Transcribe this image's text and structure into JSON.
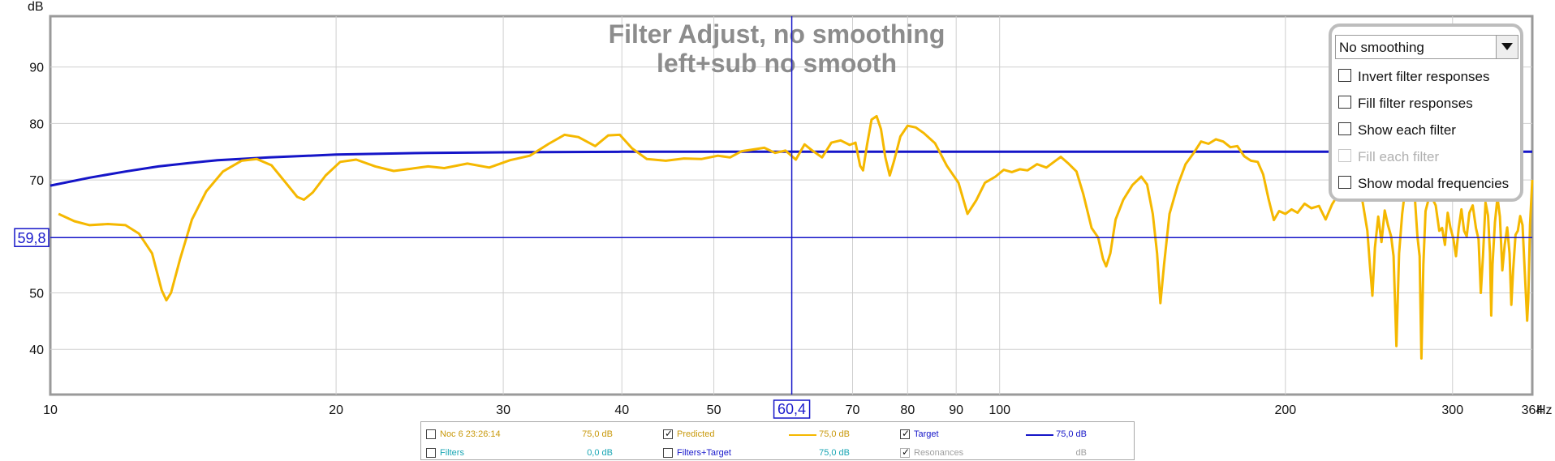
{
  "chart_data": {
    "type": "line",
    "title": "Filter Adjust, no smoothing",
    "subtitle": "left+sub no smooth",
    "ylabel": "dB",
    "xunit": "Hz",
    "xscale": "log",
    "xlim": [
      10,
      364
    ],
    "ylim": [
      32,
      99
    ],
    "x_ticks": [
      "10",
      "20",
      "30",
      "40",
      "50",
      "70",
      "80",
      "90",
      "100",
      "200",
      "300",
      "364"
    ],
    "y_ticks": [
      "90",
      "80",
      "70",
      "50",
      "40"
    ],
    "grid": true,
    "cursor": {
      "x": 60.4,
      "y": 59.8,
      "x_label": "60,4",
      "y_label": "59,8"
    },
    "series": [
      {
        "name": "Target",
        "color": "#1515c8",
        "points": [
          [
            10,
            69
          ],
          [
            11,
            70.4
          ],
          [
            12,
            71.5
          ],
          [
            13,
            72.4
          ],
          [
            14,
            73
          ],
          [
            15,
            73.5
          ],
          [
            17,
            74
          ],
          [
            20,
            74.5
          ],
          [
            25,
            74.8
          ],
          [
            30,
            74.9
          ],
          [
            40,
            75
          ],
          [
            364,
            75
          ]
        ]
      },
      {
        "name": "Predicted",
        "color": "#f5b800",
        "points": [
          [
            10.2,
            64
          ],
          [
            10.6,
            62.7
          ],
          [
            11,
            62
          ],
          [
            11.5,
            62.2
          ],
          [
            12,
            62
          ],
          [
            12.4,
            60.5
          ],
          [
            12.8,
            57
          ],
          [
            13.1,
            50.5
          ],
          [
            13.25,
            48.7
          ],
          [
            13.4,
            50
          ],
          [
            13.7,
            56
          ],
          [
            14.1,
            63
          ],
          [
            14.6,
            68
          ],
          [
            15.2,
            71.5
          ],
          [
            15.9,
            73.4
          ],
          [
            16.5,
            73.7
          ],
          [
            17.1,
            72.6
          ],
          [
            17.7,
            69.5
          ],
          [
            18.2,
            67
          ],
          [
            18.5,
            66.5
          ],
          [
            18.9,
            67.8
          ],
          [
            19.5,
            70.8
          ],
          [
            20.2,
            73.2
          ],
          [
            21,
            73.6
          ],
          [
            22,
            72.4
          ],
          [
            23,
            71.6
          ],
          [
            24,
            72
          ],
          [
            25,
            72.4
          ],
          [
            26,
            72.1
          ],
          [
            27.5,
            72.9
          ],
          [
            29,
            72.2
          ],
          [
            30.5,
            73.5
          ],
          [
            32,
            74.3
          ],
          [
            33.5,
            76.4
          ],
          [
            34.8,
            78
          ],
          [
            36,
            77.6
          ],
          [
            37.5,
            76
          ],
          [
            38.7,
            77.9
          ],
          [
            39.8,
            78
          ],
          [
            41,
            75.6
          ],
          [
            42.5,
            73.7
          ],
          [
            44.5,
            73.4
          ],
          [
            46.5,
            73.8
          ],
          [
            48.5,
            73.7
          ],
          [
            50.5,
            74.3
          ],
          [
            52,
            74
          ],
          [
            53.5,
            75.1
          ],
          [
            55,
            75.4
          ],
          [
            56.5,
            75.7
          ],
          [
            58,
            74.8
          ],
          [
            59.5,
            75.2
          ],
          [
            61,
            73.6
          ],
          [
            62.3,
            76.3
          ],
          [
            63.5,
            75.2
          ],
          [
            65,
            74
          ],
          [
            66.5,
            76.6
          ],
          [
            68,
            77
          ],
          [
            69.5,
            76.2
          ],
          [
            70.5,
            76.6
          ],
          [
            71.3,
            72.5
          ],
          [
            71.8,
            71.7
          ],
          [
            72.5,
            76.2
          ],
          [
            73.3,
            80.7
          ],
          [
            74.2,
            81.3
          ],
          [
            75,
            79
          ],
          [
            75.8,
            74
          ],
          [
            76.6,
            70.8
          ],
          [
            77.4,
            73.3
          ],
          [
            78.6,
            77.7
          ],
          [
            80,
            79.6
          ],
          [
            81.6,
            79.3
          ],
          [
            83.2,
            78.3
          ],
          [
            85.5,
            76.5
          ],
          [
            88,
            72.5
          ],
          [
            90.5,
            69.5
          ],
          [
            92.5,
            64
          ],
          [
            94.5,
            66.4
          ],
          [
            96.5,
            69.5
          ],
          [
            99,
            70.6
          ],
          [
            101,
            71.8
          ],
          [
            103,
            71.4
          ],
          [
            105,
            71.9
          ],
          [
            107,
            71.7
          ],
          [
            109.5,
            72.8
          ],
          [
            112,
            72.2
          ],
          [
            114.5,
            73.4
          ],
          [
            116,
            74.1
          ],
          [
            118,
            73
          ],
          [
            120.5,
            71.5
          ],
          [
            122.5,
            67.5
          ],
          [
            125,
            61.5
          ],
          [
            127,
            59.8
          ],
          [
            128.5,
            56
          ],
          [
            129.5,
            54.7
          ],
          [
            130.8,
            57
          ],
          [
            132.5,
            63
          ],
          [
            135,
            66.5
          ],
          [
            138,
            69.1
          ],
          [
            141,
            70.6
          ],
          [
            143,
            69.2
          ],
          [
            145,
            64
          ],
          [
            146.5,
            57
          ],
          [
            147.7,
            48.2
          ],
          [
            149,
            55
          ],
          [
            151,
            64
          ],
          [
            154,
            69
          ],
          [
            157,
            72.8
          ],
          [
            160,
            74.7
          ],
          [
            163,
            76.8
          ],
          [
            166,
            76.4
          ],
          [
            169,
            77.2
          ],
          [
            172,
            76.8
          ],
          [
            175,
            75.8
          ],
          [
            178,
            76
          ],
          [
            181,
            74.2
          ],
          [
            184,
            73.4
          ],
          [
            187,
            73.2
          ],
          [
            189.5,
            71
          ],
          [
            192,
            66.6
          ],
          [
            194.5,
            62.9
          ],
          [
            197,
            64.5
          ],
          [
            200,
            64
          ],
          [
            203,
            64.8
          ],
          [
            206,
            64.2
          ],
          [
            209.5,
            65.8
          ],
          [
            213,
            65
          ],
          [
            217,
            65.4
          ],
          [
            220.5,
            63
          ],
          [
            224,
            65.7
          ],
          [
            228,
            67.8
          ],
          [
            231,
            69
          ],
          [
            233.5,
            72.7
          ],
          [
            236,
            74.8
          ],
          [
            238.5,
            71
          ],
          [
            241,
            66.5
          ],
          [
            244,
            61
          ],
          [
            245.5,
            55
          ],
          [
            247,
            49.5
          ],
          [
            248.5,
            58
          ],
          [
            250.5,
            63.5
          ],
          [
            252.5,
            59
          ],
          [
            254.5,
            64.6
          ],
          [
            256.5,
            62
          ],
          [
            258.5,
            60
          ],
          [
            260,
            56.5
          ],
          [
            261.8,
            40.6
          ],
          [
            263.5,
            57
          ],
          [
            265.5,
            64
          ],
          [
            267.5,
            68.5
          ],
          [
            269.5,
            72.6
          ],
          [
            271.5,
            73.2
          ],
          [
            273.5,
            68
          ],
          [
            275.5,
            60
          ],
          [
            277,
            56.5
          ],
          [
            278.2,
            38.4
          ],
          [
            279.5,
            55
          ],
          [
            281,
            64.5
          ],
          [
            283,
            66.5
          ],
          [
            285.5,
            66.8
          ],
          [
            288,
            65.5
          ],
          [
            290.5,
            61
          ],
          [
            292.5,
            61.5
          ],
          [
            294.5,
            58.5
          ],
          [
            296.5,
            64.2
          ],
          [
            298.5,
            61.5
          ],
          [
            300.5,
            59.7
          ],
          [
            302.5,
            56.5
          ],
          [
            304.5,
            61.4
          ],
          [
            306.5,
            64.8
          ],
          [
            308.5,
            61
          ],
          [
            310.5,
            60
          ],
          [
            312.5,
            64.2
          ],
          [
            315,
            65.5
          ],
          [
            317.5,
            61.5
          ],
          [
            319.5,
            59.5
          ],
          [
            321.3,
            50
          ],
          [
            323,
            56.6
          ],
          [
            325,
            66
          ],
          [
            327,
            63.7
          ],
          [
            328.5,
            57
          ],
          [
            329.5,
            46
          ],
          [
            330.5,
            55
          ],
          [
            332.5,
            62.5
          ],
          [
            334.5,
            66.9
          ],
          [
            336.5,
            63.5
          ],
          [
            338.5,
            54
          ],
          [
            340.5,
            58.6
          ],
          [
            342.5,
            61.6
          ],
          [
            344.5,
            57
          ],
          [
            346,
            47.9
          ],
          [
            347.5,
            54
          ],
          [
            349.5,
            60.3
          ],
          [
            351.5,
            61
          ],
          [
            353.5,
            63.6
          ],
          [
            355.5,
            62
          ],
          [
            357.5,
            53.6
          ],
          [
            359.5,
            45.1
          ],
          [
            360.5,
            49
          ],
          [
            362,
            62
          ],
          [
            364,
            70
          ]
        ]
      }
    ]
  },
  "options_panel": {
    "smoothing_selected": "No  smoothing",
    "items": [
      {
        "label": "Invert filter responses",
        "checked": false,
        "enabled": true
      },
      {
        "label": "Fill filter responses",
        "checked": false,
        "enabled": true
      },
      {
        "label": "Show each filter",
        "checked": false,
        "enabled": true
      },
      {
        "label": "Fill each filter",
        "checked": false,
        "enabled": false
      },
      {
        "label": "Show modal frequencies",
        "checked": false,
        "enabled": true
      }
    ]
  },
  "legend": {
    "row1": {
      "a": {
        "name": "Noc 6 23:26:14",
        "value": "75,0 dB",
        "color": "#c8980a",
        "checked": false
      },
      "b": {
        "name": "Predicted",
        "value": "75,0 dB",
        "color": "#f5b800",
        "checked": true
      },
      "c": {
        "name": "Target",
        "value": "75,0 dB",
        "color": "#1515c8",
        "checked": true
      }
    },
    "row2": {
      "a": {
        "name": "Filters",
        "value": "0,0 dB",
        "color": "#19a6b4",
        "checked": false
      },
      "b": {
        "name": "Filters+Target",
        "value": "75,0 dB",
        "color": "#19a6b4",
        "checked": false
      },
      "c": {
        "name": "Resonances",
        "value": "dB",
        "color": "#a0a0a0",
        "checked": true
      }
    }
  }
}
